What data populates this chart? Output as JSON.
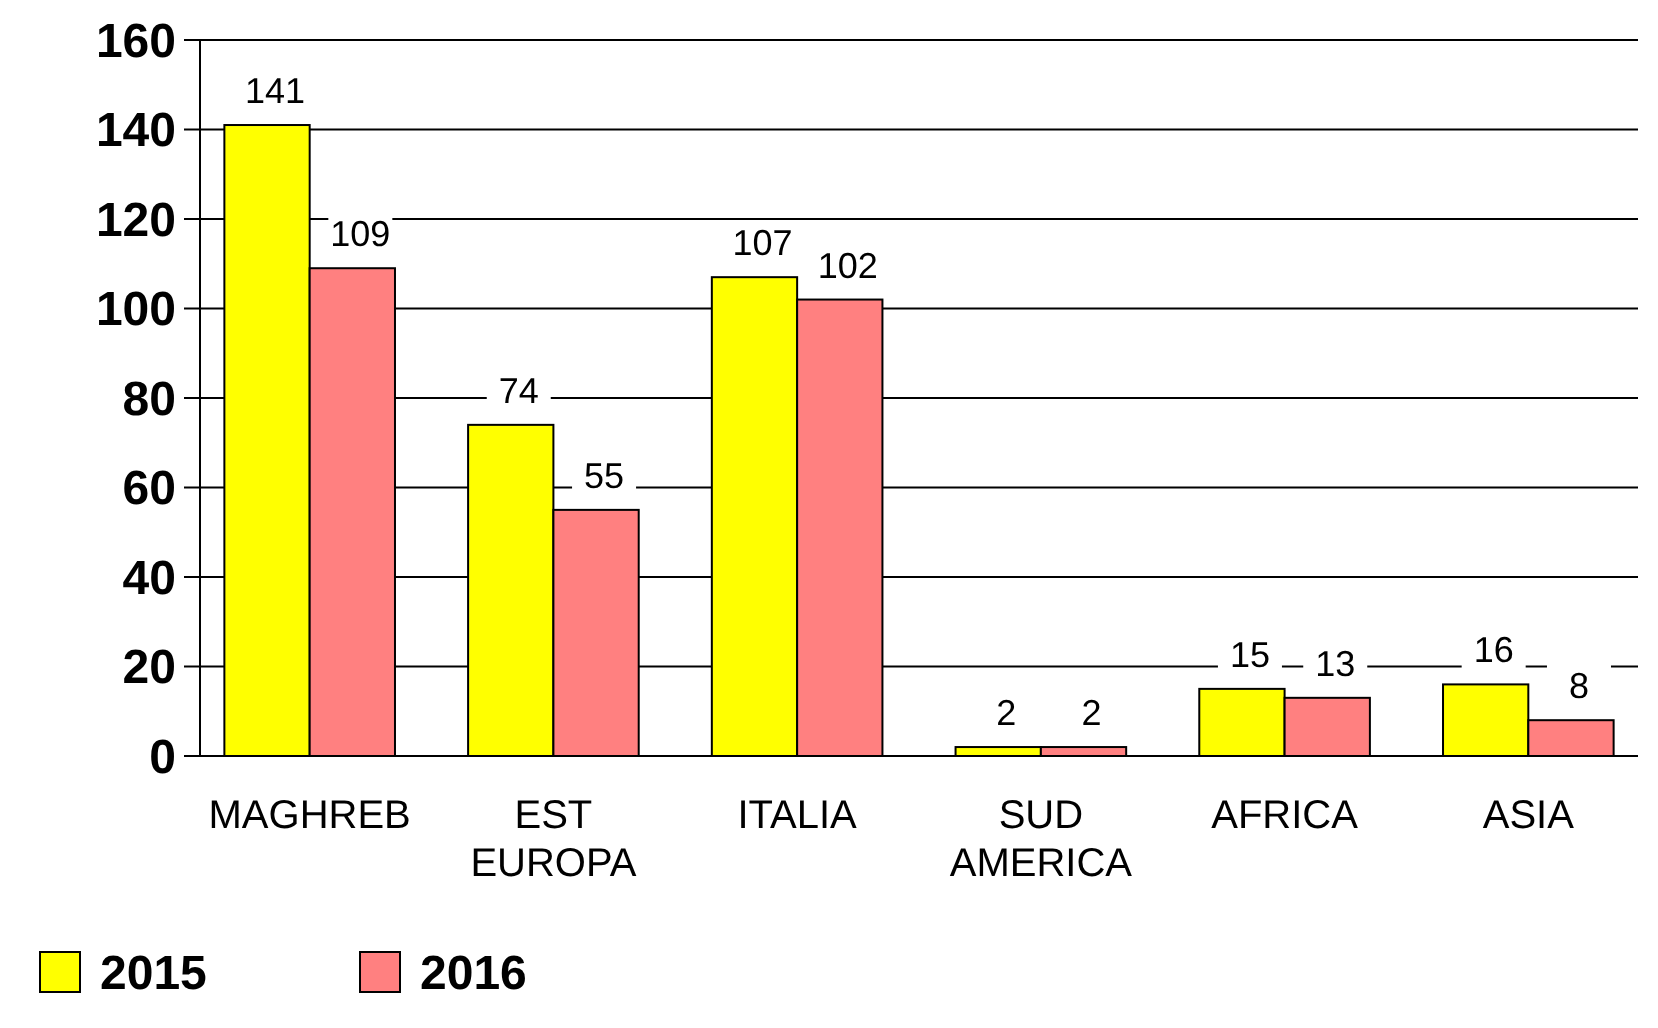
{
  "chart_data": {
    "type": "bar",
    "categories": [
      "MAGHREB",
      "EST EUROPA",
      "ITALIA",
      "SUD AMERICA",
      "AFRICA",
      "ASIA"
    ],
    "series": [
      {
        "name": "2015",
        "color": "#ffff00",
        "values": [
          141,
          74,
          107,
          2,
          15,
          16
        ]
      },
      {
        "name": "2016",
        "color": "#ff8080",
        "values": [
          109,
          55,
          102,
          2,
          13,
          8
        ]
      }
    ],
    "ylim": [
      0,
      160
    ],
    "yticks": [
      0,
      20,
      40,
      60,
      80,
      100,
      120,
      140,
      160
    ],
    "grid": "y",
    "legend": "bottom left",
    "data_labels": true
  }
}
